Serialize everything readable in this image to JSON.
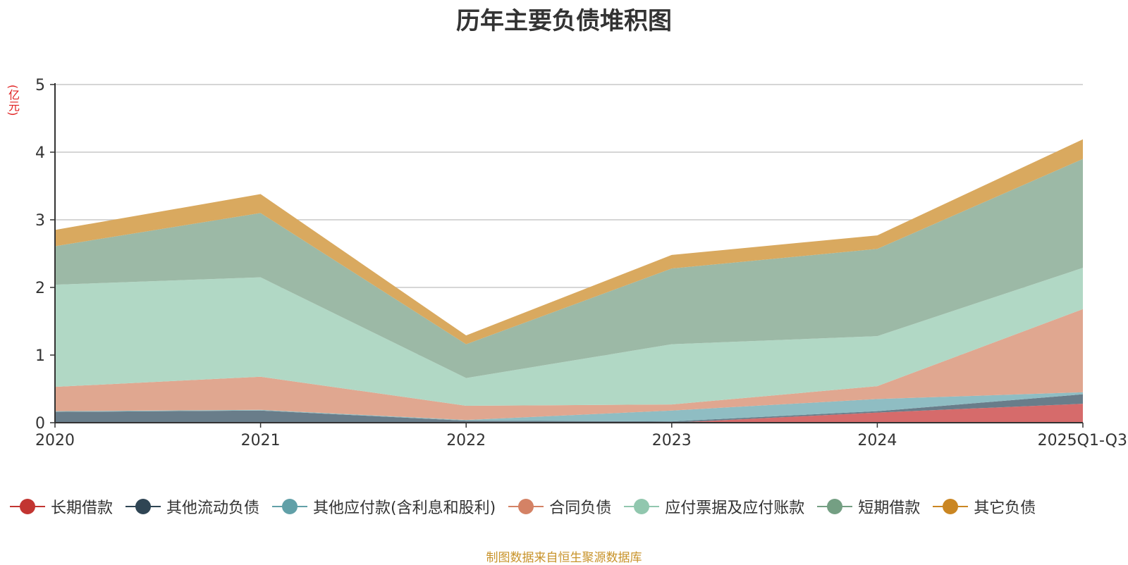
{
  "chart_data": {
    "type": "area",
    "stacked": true,
    "title": "历年主要负债堆积图",
    "ylabel": "(亿元)",
    "xlabel": "",
    "categories": [
      "2020",
      "2021",
      "2022",
      "2023",
      "2024",
      "2025Q1-Q3"
    ],
    "ylim": [
      0,
      5
    ],
    "yticks": [
      "0",
      "1",
      "2",
      "3",
      "4",
      "5"
    ],
    "grid": true,
    "legend_position": "bottom",
    "series": [
      {
        "name": "长期借款",
        "color": "#c23531",
        "fill": "#d66b6b",
        "values": [
          0,
          0,
          0,
          0,
          0.15,
          0.28
        ]
      },
      {
        "name": "其他流动负债",
        "color": "#2f4554",
        "fill": "#697d8a",
        "values": [
          0.16,
          0.18,
          0.03,
          0.02,
          0.02,
          0.14
        ]
      },
      {
        "name": "其他应付款(含利息和股利)",
        "color": "#61a0a8",
        "fill": "#8fbdc3",
        "values": [
          0.01,
          0.01,
          0.01,
          0.16,
          0.18,
          0.03
        ]
      },
      {
        "name": "合同负债",
        "color": "#d48265",
        "fill": "#e0a790",
        "values": [
          0.36,
          0.49,
          0.21,
          0.09,
          0.19,
          1.23
        ]
      },
      {
        "name": "应付票据及应付账款",
        "color": "#91c7ae",
        "fill": "#b1d8c5",
        "values": [
          1.51,
          1.47,
          0.41,
          0.89,
          0.74,
          0.61
        ]
      },
      {
        "name": "短期借款",
        "color": "#749f83",
        "fill": "#9cb9a6",
        "values": [
          0.57,
          0.95,
          0.5,
          1.12,
          1.29,
          1.61
        ]
      },
      {
        "name": "其它负债",
        "color": "#ca8622",
        "fill": "#d9a95f",
        "values": [
          0.24,
          0.28,
          0.13,
          0.2,
          0.2,
          0.29
        ]
      }
    ]
  },
  "source_note": "制图数据来自恒生聚源数据库"
}
